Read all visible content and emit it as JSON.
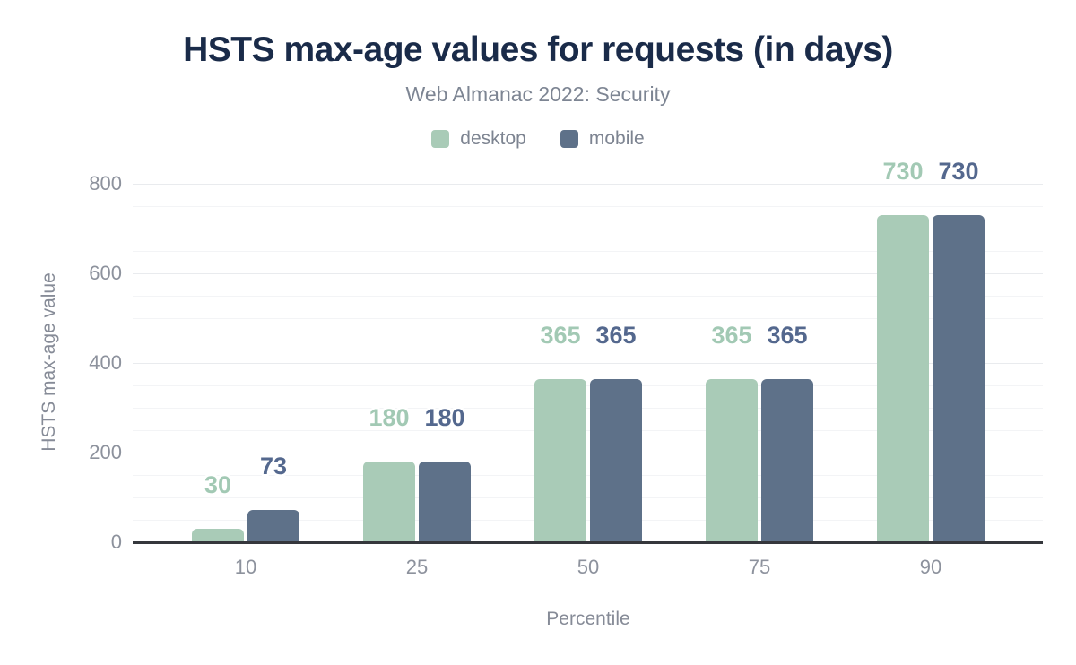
{
  "title": "HSTS max-age values for requests (in days)",
  "subtitle": "Web Almanac 2022: Security",
  "legend": [
    {
      "label": "desktop",
      "color": "#a9cbb7"
    },
    {
      "label": "mobile",
      "color": "#5e7189"
    }
  ],
  "chart_data": {
    "type": "bar",
    "title": "HSTS max-age values for requests (in days)",
    "subtitle": "Web Almanac 2022: Security",
    "categories": [
      "10",
      "25",
      "50",
      "75",
      "90"
    ],
    "series": [
      {
        "name": "desktop",
        "color": "#a9cbb7",
        "label_color": "#a2c9b4",
        "values": [
          30,
          180,
          365,
          365,
          730
        ]
      },
      {
        "name": "mobile",
        "color": "#5e7189",
        "label_color": "#54688e",
        "values": [
          73,
          180,
          365,
          365,
          730
        ]
      }
    ],
    "xlabel": "Percentile",
    "ylabel": "HSTS max-age value",
    "ylim": [
      0,
      800
    ],
    "y_major_step": 200,
    "y_minor_step": 50,
    "y_tick_labels": [
      "0",
      "200",
      "400",
      "600",
      "800"
    ],
    "grid": true,
    "legend_position": "top",
    "colors": {
      "title": "#1a2b49",
      "subtitle": "#7d8593",
      "axis_text": "#8d929d",
      "axis_title": "#868b97",
      "baseline": "#35373c",
      "grid_major": "#e9ebee",
      "grid_minor": "#f3f4f6"
    }
  }
}
